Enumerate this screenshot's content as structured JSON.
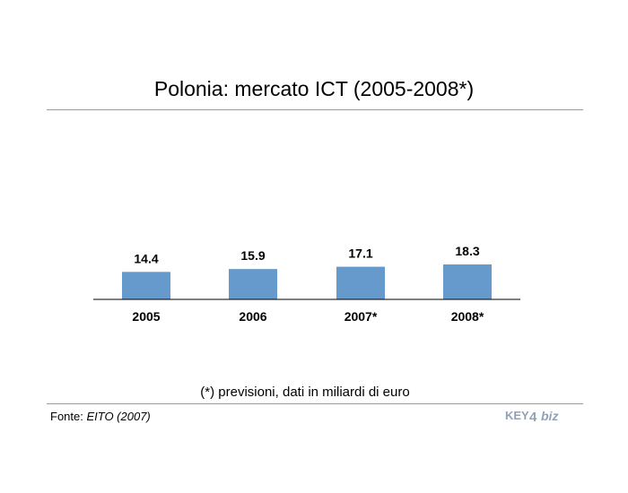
{
  "title": "Polonia: mercato ICT (2005-2008*)",
  "note": "(*) previsioni, dati in miliardi di euro",
  "source": {
    "label": "Fonte: ",
    "value": "EITO (2007)"
  },
  "logo": {
    "text_key": "KEY",
    "text_num": "4",
    "text_biz": "biz"
  },
  "colors": {
    "bar": "#6699cc",
    "axis": "#000000",
    "rule": "#9a9a9a"
  },
  "chart_data": {
    "type": "bar",
    "categories": [
      "2005",
      "2006",
      "2007*",
      "2008*"
    ],
    "series": [
      {
        "values": [
          14.4,
          15.9,
          17.1,
          18.3
        ]
      }
    ],
    "title": "Polonia: mercato ICT (2005-2008*)",
    "xlabel": "",
    "ylabel": "",
    "ylim": [
      0,
      70
    ],
    "grid": false,
    "legend": "none",
    "data_labels": true
  }
}
